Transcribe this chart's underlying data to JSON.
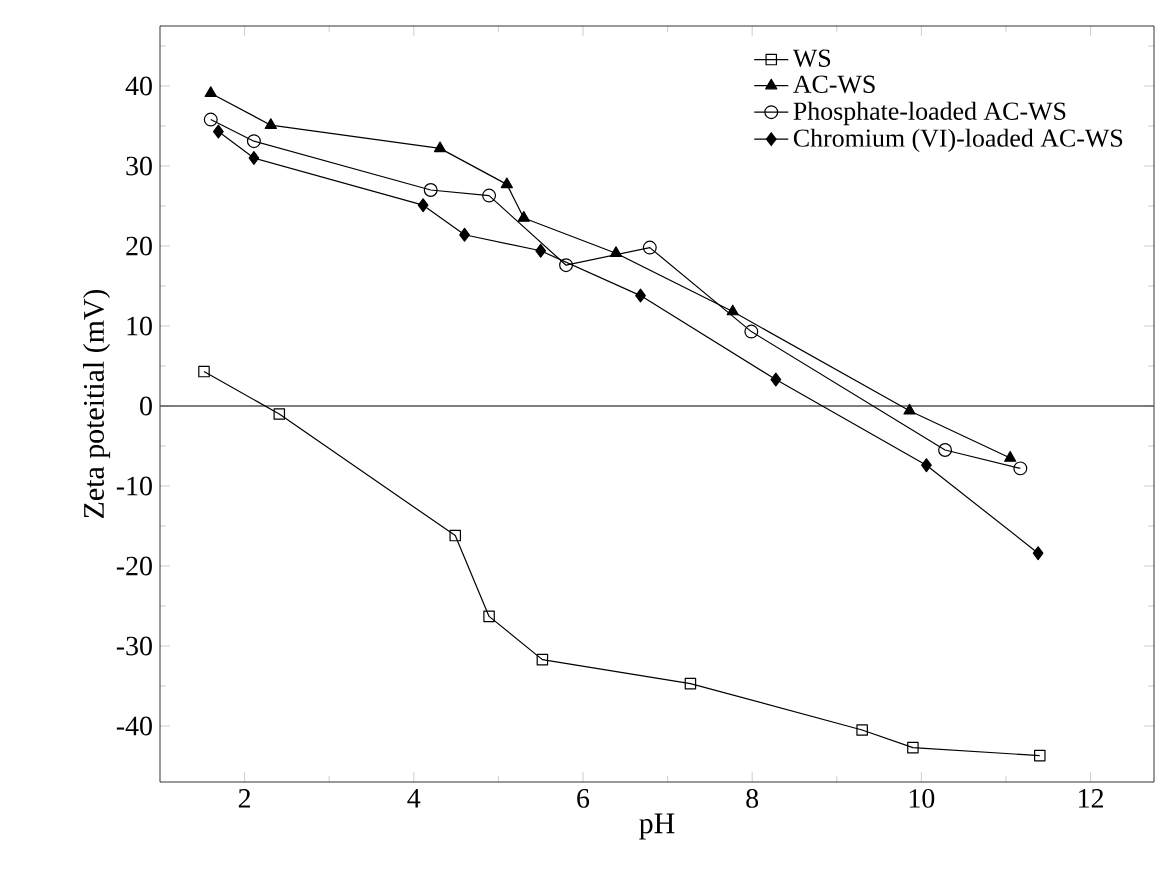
{
  "chart_data": {
    "type": "line",
    "xlabel": "pH",
    "ylabel": "Zeta poteitial (mV)",
    "xlim": [
      1,
      12.75
    ],
    "ylim": [
      -47,
      47.5
    ],
    "xticks": [
      2,
      {
        "value": 3,
        "label": null
      },
      4,
      {
        "value": 5,
        "label": null
      },
      6,
      {
        "value": 7,
        "label": null
      },
      8,
      {
        "value": 9,
        "label": null
      },
      10,
      {
        "value": 11,
        "label": null
      },
      12
    ],
    "yticks": [
      -40,
      {
        "value": -35,
        "label": null
      },
      -30,
      {
        "value": -25,
        "label": null
      },
      -20,
      {
        "value": -15,
        "label": null
      },
      -10,
      {
        "value": -5,
        "label": null
      },
      0,
      {
        "value": 5,
        "label": null
      },
      10,
      {
        "value": 15,
        "label": null
      },
      20,
      {
        "value": 25,
        "label": null
      },
      30,
      {
        "value": 35,
        "label": null
      },
      40,
      {
        "value": 45,
        "label": null
      }
    ],
    "legend": "top right",
    "line_style": "solid",
    "ref_lines": [
      {
        "axis": "y",
        "value": 0,
        "color": "#555555"
      }
    ],
    "series": [
      {
        "name": "WS",
        "color": "#000000",
        "marker": "square",
        "x": [
          1.52,
          2.41,
          4.49,
          4.89,
          5.52,
          7.27,
          9.3,
          9.9,
          11.4
        ],
        "values": [
          4.3,
          -1,
          -16.2,
          -26.3,
          -31.7,
          -34.7,
          -40.5,
          -42.7,
          -43.7
        ]
      },
      {
        "name": "AC-WS",
        "color": "#000000",
        "marker": "triangle",
        "x": [
          1.6,
          2.31,
          4.31,
          5.1,
          5.3,
          6.39,
          7.77,
          9.86,
          11.05
        ],
        "values": [
          39.1,
          35.1,
          32.2,
          27.7,
          23.5,
          19.1,
          11.8,
          -0.6,
          -6.5
        ]
      },
      {
        "name": "Phosphate-loaded AC-WS",
        "color": "#000000",
        "marker": "circle",
        "x": [
          1.6,
          2.11,
          4.2,
          4.89,
          5.8,
          6.79,
          7.99,
          10.28,
          11.17
        ],
        "values": [
          35.8,
          33.1,
          27,
          26.3,
          17.6,
          19.8,
          9.3,
          -5.5,
          -7.8
        ]
      },
      {
        "name": "Chromium (VI)-loaded AC-WS",
        "color": "#000000",
        "marker": "diamond",
        "x": [
          1.69,
          2.11,
          4.11,
          4.6,
          5.5,
          6.68,
          8.28,
          10.06,
          11.38
        ],
        "values": [
          34.3,
          31,
          25.1,
          21.4,
          19.4,
          13.8,
          3.3,
          -7.4,
          -18.4
        ]
      }
    ]
  }
}
